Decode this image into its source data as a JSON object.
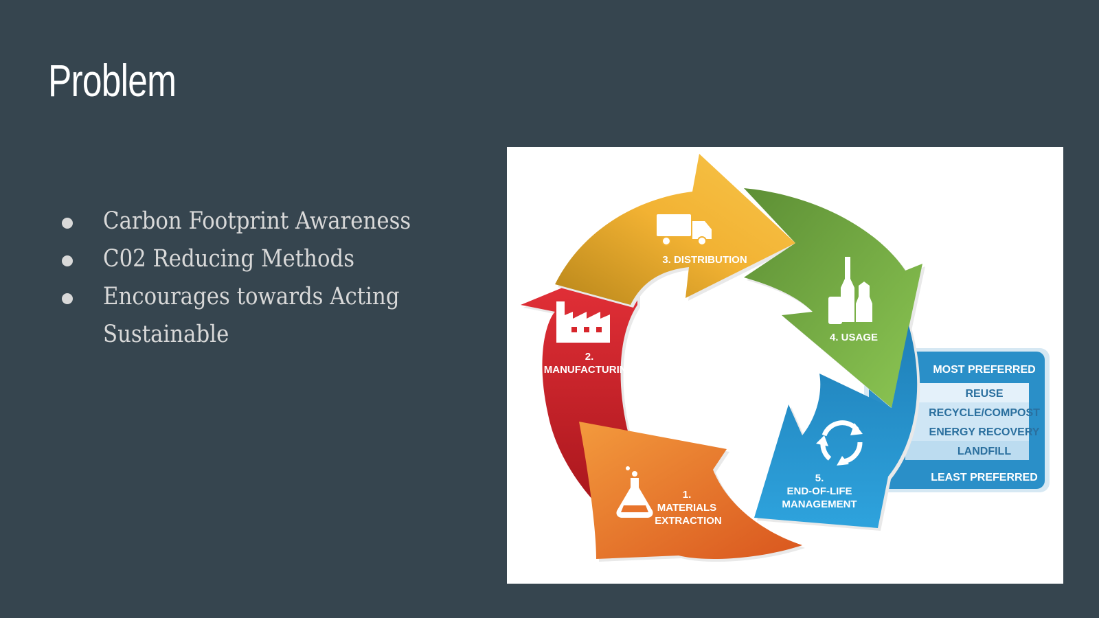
{
  "slide": {
    "title": "Problem",
    "bullets": [
      {
        "text": "Carbon Footprint Awareness"
      },
      {
        "text": "C02 Reducing Methods"
      },
      {
        "text": "Encourages towards Acting"
      },
      {
        "text": "Sustainable"
      }
    ]
  },
  "lifecycle": {
    "stages": [
      {
        "number": "1.",
        "line1": "MATERIALS",
        "line2": "EXTRACTION",
        "icon": "flask-icon",
        "color": "#e8742c"
      },
      {
        "number": "2.",
        "line1": "MANUFACTURING",
        "icon": "factory-icon",
        "color": "#d7252b"
      },
      {
        "line1": "3. DISTRIBUTION",
        "icon": "truck-icon",
        "color": "#f2b233"
      },
      {
        "line1": "4. USAGE",
        "icon": "bottles-icon",
        "color": "#7cb342"
      },
      {
        "number": "5.",
        "line1": "END-OF-LIFE",
        "line2": "MANAGEMENT",
        "icon": "recycle-icon",
        "color": "#2a8fc8"
      }
    ],
    "hierarchy": {
      "top": "MOST PREFERRED",
      "options": [
        "REUSE",
        "RECYCLE/COMPOST",
        "ENERGY RECOVERY",
        "LANDFILL"
      ],
      "bottom": "LEAST PREFERRED"
    }
  }
}
